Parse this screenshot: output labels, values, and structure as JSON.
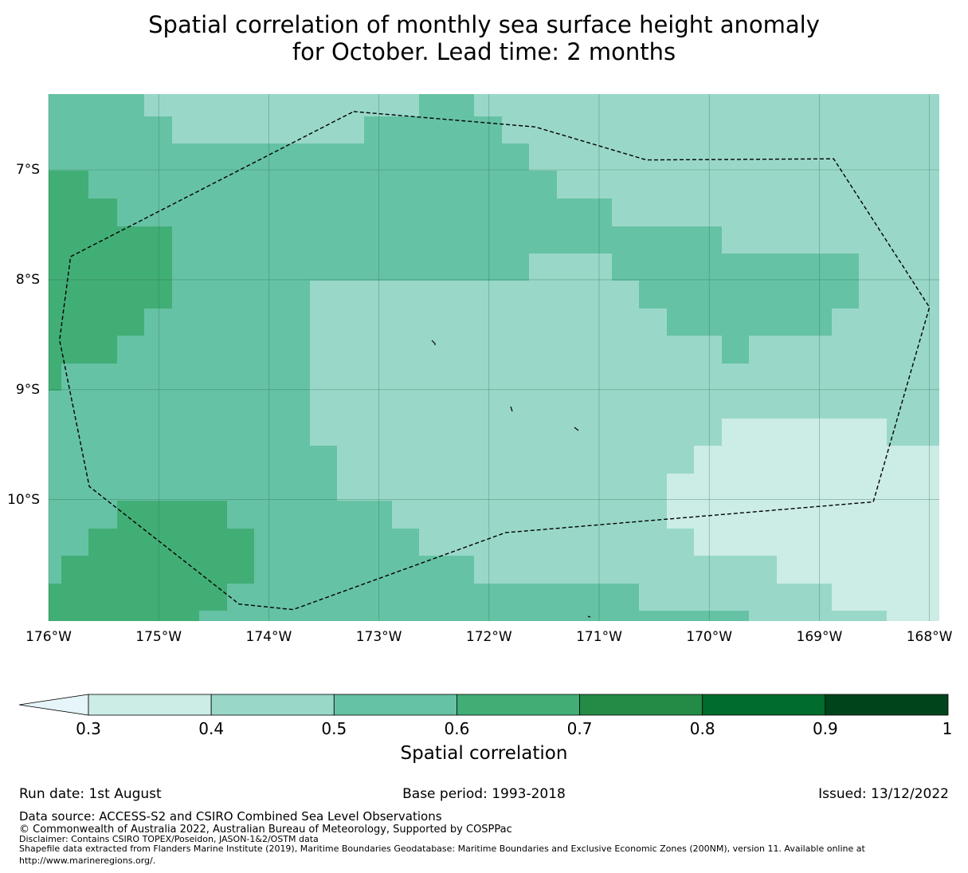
{
  "title": {
    "line1": "Spatial correlation of monthly sea surface height anomaly",
    "line2": "for October. Lead time: 2 months"
  },
  "map": {
    "lon_range": [
      -176,
      -167.9
    ],
    "lat_range": [
      -11.1,
      -6.3
    ],
    "x_ticks": [
      "176°W",
      "175°W",
      "174°W",
      "173°W",
      "172°W",
      "171°W",
      "170°W",
      "169°W",
      "168°W"
    ],
    "x_tick_values": [
      -176,
      -175,
      -174,
      -173,
      -172,
      -171,
      -170,
      -169,
      -168
    ],
    "y_ticks": [
      "7°S",
      "8°S",
      "9°S",
      "10°S"
    ],
    "y_tick_values": [
      -7,
      -8,
      -9,
      -10
    ],
    "grid": true,
    "eez_boundary": [
      [
        -173.23,
        -6.47
      ],
      [
        -171.58,
        -6.61
      ],
      [
        -170.57,
        -6.91
      ],
      [
        -168.87,
        -6.9
      ],
      [
        -168.0,
        -8.25
      ],
      [
        -168.51,
        -10.02
      ],
      [
        -171.85,
        -10.3
      ],
      [
        -173.78,
        -11.0
      ],
      [
        -174.27,
        -10.95
      ],
      [
        -175.63,
        -9.88
      ],
      [
        -175.9,
        -8.55
      ],
      [
        -175.8,
        -7.79
      ],
      [
        -173.23,
        -6.47
      ]
    ]
  },
  "colorbar": {
    "bounds": [
      "0.3",
      "0.4",
      "0.5",
      "0.6",
      "0.7",
      "0.8",
      "0.9",
      "1"
    ],
    "colors": [
      "#e5f5f9",
      "#ccece6",
      "#99d8c9",
      "#66c2a4",
      "#41ae76",
      "#238b45",
      "#006d2c",
      "#00441b"
    ],
    "extend": "min",
    "label": "Spatial correlation"
  },
  "footer": {
    "run_date": "Run date: 1st August",
    "base_period": "Base period: 1993-2018",
    "issued": "Issued: 13/12/2022",
    "data_source": "Data source: ACCESS-S2 and CSIRO Combined Sea Level Observations",
    "copyright": "© Commonwealth of Australia 2022, Australian Bureau of Meteorology, Supported by COSPPac",
    "disclaimer": "Disclaimer: Contains CSIRO TOPEX/Poseidon, JASON-1&2/OSTM data",
    "shapefile": "Shapefile data extracted from Flanders Marine Institute (2019), Maritime Boundaries Geodatabase: Maritime Boundaries and Exclusive Economic Zones (200NM), version 11. Available online at",
    "url": "http://www.marineregions.org/."
  }
}
